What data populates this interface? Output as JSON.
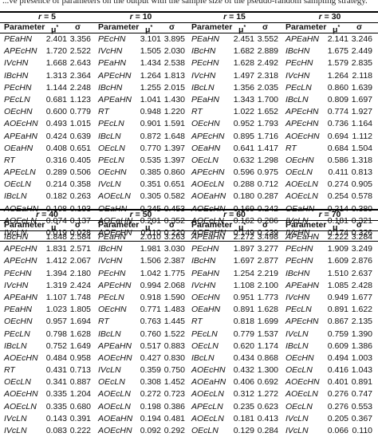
{
  "caption_fragment": "...ve presence of parameters on the output with the sample size of the pseudo-random sampling strategy.",
  "columns": {
    "param": "Parameter",
    "mu": "μ",
    "mu_sup": "*",
    "sigma": "σ"
  },
  "r_label_prefix": "r",
  "top_groups": [
    {
      "r": "= 5",
      "rows": [
        [
          "PEaHN",
          "2.401",
          "3.356"
        ],
        [
          "APEcHN",
          "1.720",
          "2.522"
        ],
        [
          "IVcHN",
          "1.668",
          "2.643"
        ],
        [
          "IBcHN",
          "1.313",
          "2.364"
        ],
        [
          "PEcHN",
          "1.144",
          "2.248"
        ],
        [
          "PEcLN",
          "0.681",
          "1.123"
        ],
        [
          "OEcHN",
          "0.600",
          "0.779"
        ],
        [
          "AOEcHN",
          "0.493",
          "1.015"
        ],
        [
          "APEaHN",
          "0.424",
          "0.639"
        ],
        [
          "OEaHN",
          "0.408",
          "0.651"
        ],
        [
          "RT",
          "0.316",
          "0.405"
        ],
        [
          "APEcLN",
          "0.289",
          "0.506"
        ],
        [
          "OEcLN",
          "0.214",
          "0.358"
        ],
        [
          "IBcLN",
          "0.182",
          "0.263"
        ],
        [
          "AOEaHN",
          "0.108",
          "0.193"
        ],
        [
          "AOEcLN",
          "0.074",
          "0.137"
        ],
        [
          "IVcLN",
          "0.019",
          "0.028"
        ]
      ]
    },
    {
      "r": "= 10",
      "rows": [
        [
          "PEcHN",
          "3.101",
          "3.895"
        ],
        [
          "IVcHN",
          "1.505",
          "2.030"
        ],
        [
          "PEaHN",
          "1.434",
          "2.538"
        ],
        [
          "APEcHN",
          "1.264",
          "1.813"
        ],
        [
          "IBcHN",
          "1.255",
          "2.015"
        ],
        [
          "APEaHN",
          "1.041",
          "1.430"
        ],
        [
          "RT",
          "0.948",
          "1.220"
        ],
        [
          "PEcLN",
          "0.901",
          "1.591"
        ],
        [
          "IBcLN",
          "0.872",
          "1.648"
        ],
        [
          "OEcLN",
          "0.770",
          "1.397"
        ],
        [
          "PEcLN",
          "0.535",
          "1.397"
        ],
        [
          "OEcHN",
          "0.385",
          "0.860"
        ],
        [
          "IVcLN",
          "0.351",
          "0.651"
        ],
        [
          "AOEcLN",
          "0.305",
          "0.582"
        ],
        [
          "OEaHN",
          "0.245",
          "0.453"
        ],
        [
          "AOEaHN",
          "0.201",
          "0.352"
        ],
        [
          "AOEcHN",
          "0.110",
          "0.220"
        ]
      ]
    },
    {
      "r": "= 15",
      "rows": [
        [
          "PEaHN",
          "2.451",
          "3.552"
        ],
        [
          "IBcHN",
          "1.682",
          "2.889"
        ],
        [
          "PEcHN",
          "1.628",
          "2.492"
        ],
        [
          "IVcHN",
          "1.497",
          "2.318"
        ],
        [
          "IBcLN",
          "1.356",
          "2.035"
        ],
        [
          "PEaHN",
          "1.343",
          "1.700"
        ],
        [
          "RT",
          "1.022",
          "1.652"
        ],
        [
          "OEcHN",
          "0.952",
          "1.793"
        ],
        [
          "APEcHN",
          "0.895",
          "1.716"
        ],
        [
          "OEaHN",
          "0.641",
          "1.417"
        ],
        [
          "OEcLN",
          "0.632",
          "1.298"
        ],
        [
          "APEcHN",
          "0.596",
          "0.975"
        ],
        [
          "AOEcLN",
          "0.288",
          "0.712"
        ],
        [
          "AOEaHN",
          "0.180",
          "0.287"
        ],
        [
          "AOEcHN",
          "0.169",
          "0.242"
        ],
        [
          "AOEcLN",
          "0.162",
          "0.286"
        ],
        [
          "AOEaHN",
          "0.149",
          "0.239"
        ]
      ]
    },
    {
      "r": "= 30",
      "rows": [
        [
          "APEaHN",
          "2.141",
          "3.246"
        ],
        [
          "IBcHN",
          "1.675",
          "2.449"
        ],
        [
          "PEcHN",
          "1.579",
          "2.835"
        ],
        [
          "IVcHN",
          "1.264",
          "2.118"
        ],
        [
          "PEcLN",
          "0.860",
          "1.639"
        ],
        [
          "IBcLN",
          "0.809",
          "1.697"
        ],
        [
          "APEcHN",
          "0.774",
          "1.927"
        ],
        [
          "APEcHN",
          "0.736",
          "1.164"
        ],
        [
          "AOEcHN",
          "0.694",
          "1.112"
        ],
        [
          "RT",
          "0.684",
          "1.504"
        ],
        [
          "OEcHN",
          "0.586",
          "1.318"
        ],
        [
          "OEcLN",
          "0.411",
          "0.813"
        ],
        [
          "AOEcLN",
          "0.274",
          "0.905"
        ],
        [
          "AOEcLN",
          "0.254",
          "0.578"
        ],
        [
          "OEaHN",
          "0.214",
          "0.380"
        ],
        [
          "IVcLN",
          "0.181",
          "0.321"
        ],
        [
          "IVcHN",
          "0.174",
          "0.326"
        ]
      ]
    }
  ],
  "bottom_groups": [
    {
      "r": "= 40",
      "rows": [
        [
          "IBcHN",
          "1.848",
          "2.584"
        ],
        [
          "APEcHN",
          "1.831",
          "2.571"
        ],
        [
          "APEcHN",
          "1.412",
          "2.067"
        ],
        [
          "PEcHN",
          "1.394",
          "2.180"
        ],
        [
          "IVcHN",
          "1.319",
          "2.424"
        ],
        [
          "APEaHN",
          "1.107",
          "1.748"
        ],
        [
          "PEaHN",
          "1.023",
          "1.805"
        ],
        [
          "OEcHN",
          "0.957",
          "1.694"
        ],
        [
          "PEcLN",
          "0.798",
          "1.628"
        ],
        [
          "IBcLN",
          "0.752",
          "1.649"
        ],
        [
          "AOEcHN",
          "0.484",
          "0.958"
        ],
        [
          "RT",
          "0.431",
          "0.713"
        ],
        [
          "OEcLN",
          "0.341",
          "0.887"
        ],
        [
          "AOEcHN",
          "0.335",
          "1.204"
        ],
        [
          "AOEcLN",
          "0.335",
          "0.680"
        ],
        [
          "IVcLN",
          "0.143",
          "0.391"
        ],
        [
          "IVcLN",
          "0.083",
          "0.222"
        ]
      ]
    },
    {
      "r": "= 50",
      "rows": [
        [
          "PEaHN",
          "2.010",
          "3.263"
        ],
        [
          "IBcHN",
          "1.981",
          "3.030"
        ],
        [
          "IVcHN",
          "1.506",
          "2.387"
        ],
        [
          "PEcHN",
          "1.042",
          "1.775"
        ],
        [
          "APEcHN",
          "0.994",
          "2.068"
        ],
        [
          "PEcLN",
          "0.918",
          "1.590"
        ],
        [
          "OEcHN",
          "0.771",
          "1.483"
        ],
        [
          "RT",
          "0.763",
          "1.445"
        ],
        [
          "IBcLN",
          "0.760",
          "1.522"
        ],
        [
          "APEaHN",
          "0.517",
          "0.883"
        ],
        [
          "AOEcHN",
          "0.427",
          "0.830"
        ],
        [
          "IVcLN",
          "0.359",
          "0.750"
        ],
        [
          "OEcLN",
          "0.308",
          "1.452"
        ],
        [
          "AOEcLN",
          "0.272",
          "0.723"
        ],
        [
          "AOEcLN",
          "0.198",
          "0.386"
        ],
        [
          "AOEaHN",
          "0.194",
          "0.481"
        ],
        [
          "AOEcHN",
          "0.092",
          "0.292"
        ]
      ]
    },
    {
      "r": "= 60",
      "rows": [
        [
          "APEaHN",
          "2.272",
          "3.498"
        ],
        [
          "PEcHN",
          "1.897",
          "3.277"
        ],
        [
          "IBcHN",
          "1.697",
          "2.877"
        ],
        [
          "PEaHN",
          "1.254",
          "2.219"
        ],
        [
          "IVcHN",
          "1.108",
          "2.100"
        ],
        [
          "OEcHN",
          "0.951",
          "1.773"
        ],
        [
          "OEaHN",
          "0.891",
          "1.628"
        ],
        [
          "RT",
          "0.818",
          "1.699"
        ],
        [
          "PEcLN",
          "0.779",
          "1.537"
        ],
        [
          "OEcLN",
          "0.620",
          "1.174"
        ],
        [
          "IBcLN",
          "0.434",
          "0.868"
        ],
        [
          "AOEcHN",
          "0.432",
          "1.300"
        ],
        [
          "AOEaHN",
          "0.406",
          "0.692"
        ],
        [
          "AOEcLN",
          "0.312",
          "1.272"
        ],
        [
          "APEcLN",
          "0.235",
          "0.623"
        ],
        [
          "AOEcLN",
          "0.181",
          "0.413"
        ],
        [
          "OEcLN",
          "0.129",
          "0.284"
        ]
      ]
    },
    {
      "r": "= 70",
      "rows": [
        [
          "APEaHN",
          "2.222",
          "3.284"
        ],
        [
          "PEcHN",
          "1.909",
          "3.249"
        ],
        [
          "PEcHN",
          "1.609",
          "2.876"
        ],
        [
          "IBcHN",
          "1.510",
          "2.637"
        ],
        [
          "APEaHN",
          "1.085",
          "2.428"
        ],
        [
          "IVcHN",
          "0.949",
          "1.677"
        ],
        [
          "PEcLN",
          "0.891",
          "1.622"
        ],
        [
          "APEcHN",
          "0.867",
          "2.135"
        ],
        [
          "IVcLN",
          "0.759",
          "1.390"
        ],
        [
          "IBcLN",
          "0.609",
          "1.386"
        ],
        [
          "OEcHN",
          "0.494",
          "1.003"
        ],
        [
          "OEcLN",
          "0.416",
          "1.043"
        ],
        [
          "AOEcHN",
          "0.401",
          "0.891"
        ],
        [
          "AOEcLN",
          "0.276",
          "0.747"
        ],
        [
          "OEcLN",
          "0.276",
          "0.553"
        ],
        [
          "IVcLN",
          "0.205",
          "0.367"
        ],
        [
          "IVcLN",
          "0.066",
          "0.110"
        ]
      ]
    }
  ]
}
